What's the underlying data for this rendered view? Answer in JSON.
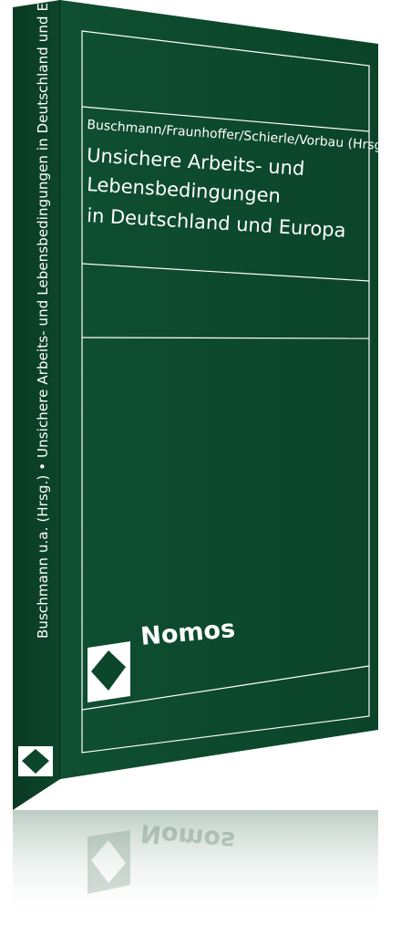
{
  "book": {
    "editors": "Buschmann/Fraunhoffer/Schierle/Vorbau (Hrsg.)",
    "title_lines": [
      "Unsichere Arbeits- und",
      "Lebensbedingungen",
      "in Deutschland und Europa"
    ],
    "spine_text": "Buschmann u.a. (Hrsg.) • Unsichere Arbeits- und Lebensbedingungen in Deutschland und Europa",
    "publisher": "Nomos",
    "reflection_text": "Nomos"
  },
  "colors": {
    "cover": "#0d4b2e",
    "spine": "#0a3f26",
    "lines": "#ffffff",
    "logo_diamond": "#ffffff"
  },
  "icons": [
    "nomos-logo-icon"
  ]
}
